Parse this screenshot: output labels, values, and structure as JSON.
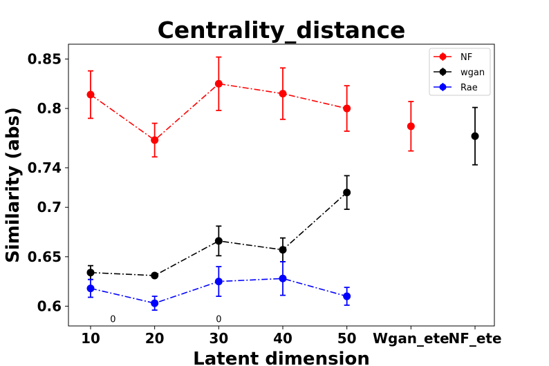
{
  "chart_data": {
    "type": "line",
    "title": "Centrality_distance",
    "xlabel": "Latent dimension",
    "ylabel": "Similarity (abs)",
    "categories": [
      "10",
      "20",
      "30",
      "40",
      "50",
      "Wgan_ete",
      "NF_ete"
    ],
    "ylim": [
      0.58,
      0.865
    ],
    "yticks": [
      0.6,
      0.65,
      0.7,
      0.74,
      0.8,
      0.85
    ],
    "ytick_labels": [
      "0.6",
      "0.65",
      "0.7",
      "0.74",
      "0.8",
      "0.85"
    ],
    "grid": false,
    "legend_position": "top-right",
    "series": [
      {
        "name": "NF",
        "color": "#ff0000",
        "line_style": "dashdot",
        "points": [
          {
            "cat": 0,
            "y": 0.814,
            "err": 0.024
          },
          {
            "cat": 1,
            "y": 0.768,
            "err": 0.017
          },
          {
            "cat": 2,
            "y": 0.825,
            "err": 0.027
          },
          {
            "cat": 3,
            "y": 0.815,
            "err": 0.026
          },
          {
            "cat": 4,
            "y": 0.8,
            "err": 0.023
          }
        ],
        "extra_points": [
          {
            "cat": 5,
            "y": 0.782,
            "err": 0.025
          }
        ]
      },
      {
        "name": "wgan",
        "color": "#000000",
        "line_style": "dashdot",
        "points": [
          {
            "cat": 0,
            "y": 0.634,
            "err": 0.007
          },
          {
            "cat": 1,
            "y": 0.631,
            "err": 0.0
          },
          {
            "cat": 2,
            "y": 0.666,
            "err": 0.015
          },
          {
            "cat": 3,
            "y": 0.657,
            "err": 0.012
          },
          {
            "cat": 4,
            "y": 0.715,
            "err": 0.017
          }
        ],
        "extra_points": [
          {
            "cat": 6,
            "y": 0.772,
            "err": 0.029
          }
        ]
      },
      {
        "name": "Rae",
        "color": "#0000ff",
        "line_style": "dashdot",
        "points": [
          {
            "cat": 0,
            "y": 0.618,
            "err": 0.009
          },
          {
            "cat": 1,
            "y": 0.603,
            "err": 0.007
          },
          {
            "cat": 2,
            "y": 0.625,
            "err": 0.015
          },
          {
            "cat": 3,
            "y": 0.628,
            "err": 0.017
          },
          {
            "cat": 4,
            "y": 0.61,
            "err": 0.009
          }
        ]
      }
    ],
    "annotations": [
      {
        "text": "0",
        "at_cat": 0.35,
        "y": 0.584
      },
      {
        "text": "0",
        "at_cat": 2.0,
        "y": 0.584
      }
    ]
  }
}
